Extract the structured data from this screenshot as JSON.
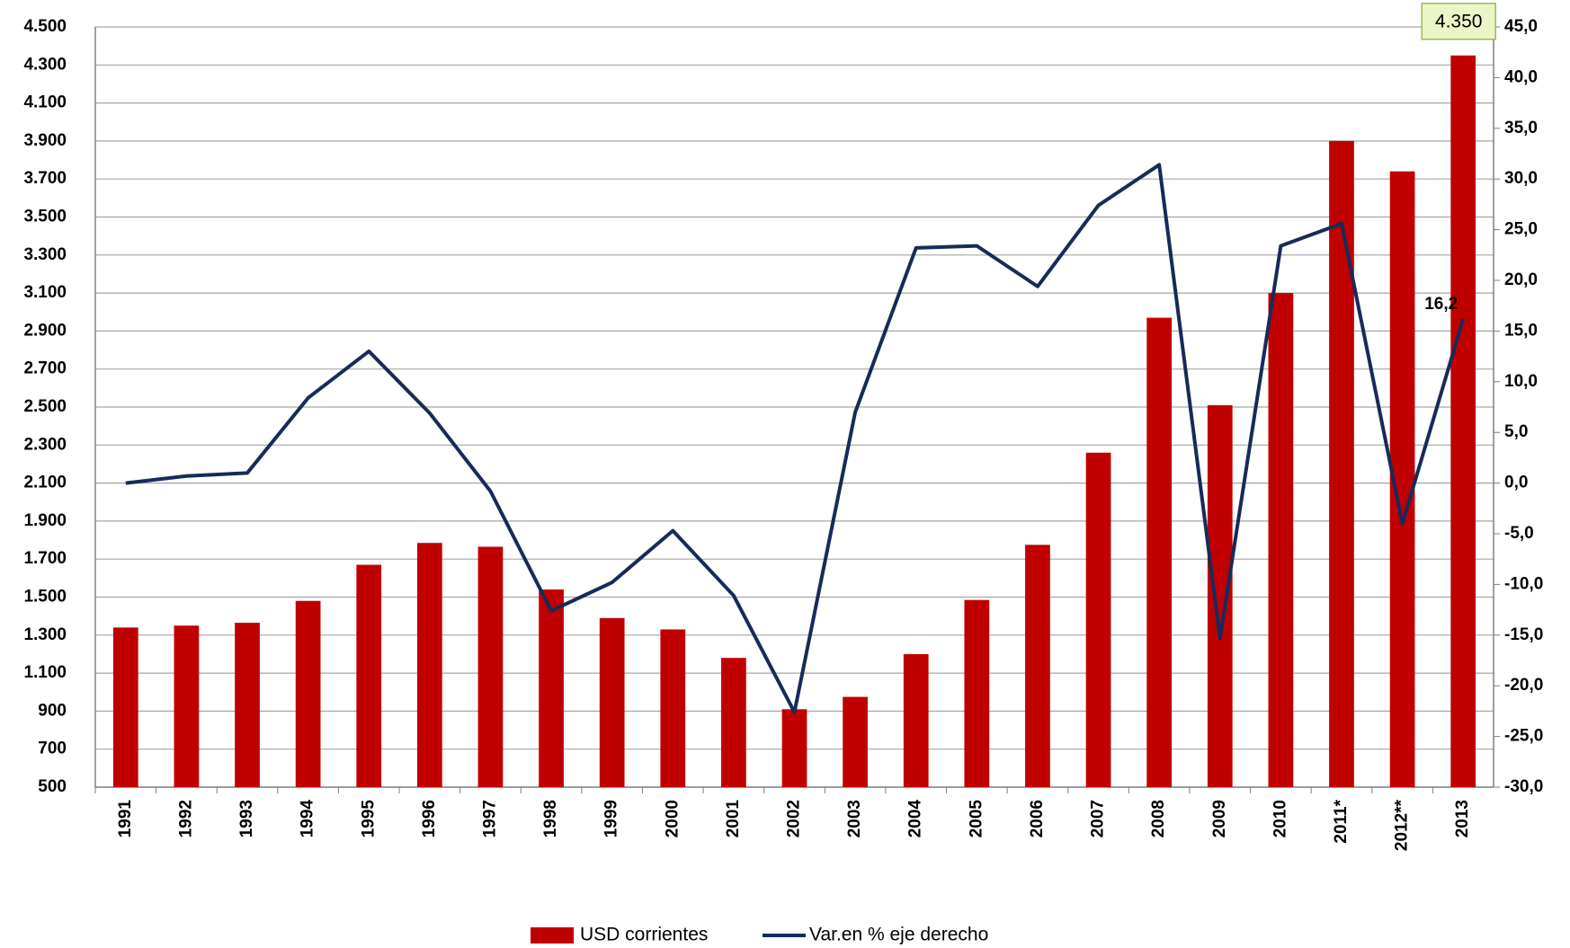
{
  "chart_data": {
    "type": "bar",
    "categories": [
      "1991",
      "1992",
      "1993",
      "1994",
      "1995",
      "1996",
      "1997",
      "1998",
      "1999",
      "2000",
      "2001",
      "2002",
      "2003",
      "2004",
      "2005",
      "2006",
      "2007",
      "2008",
      "2009",
      "2010",
      "2011*",
      "2012**",
      "2013"
    ],
    "series": [
      {
        "name": "USD corrientes",
        "type": "bar",
        "color": "#c00000",
        "axis": "y",
        "values": [
          1340,
          1350,
          1365,
          1480,
          1670,
          1785,
          1765,
          1540,
          1390,
          1330,
          1180,
          910,
          975,
          1200,
          1485,
          1775,
          2260,
          2970,
          2510,
          3100,
          3900,
          3740,
          4350
        ],
        "value_labels": [
          null,
          null,
          null,
          null,
          null,
          null,
          null,
          null,
          null,
          null,
          null,
          null,
          null,
          null,
          null,
          null,
          null,
          null,
          null,
          null,
          null,
          null,
          "4.350"
        ]
      },
      {
        "name": "Var.en % eje derecho",
        "type": "line",
        "color": "#172b5a",
        "axis": "y2",
        "values": [
          0.0,
          0.7,
          1.0,
          8.4,
          13.0,
          6.9,
          -0.8,
          -12.6,
          -9.8,
          -4.7,
          -11.1,
          -22.6,
          7.0,
          23.2,
          23.4,
          19.4,
          27.4,
          31.4,
          -15.3,
          23.4,
          25.6,
          -4.0,
          16.2
        ],
        "value_labels": [
          null,
          null,
          null,
          null,
          null,
          null,
          null,
          null,
          null,
          null,
          null,
          null,
          null,
          null,
          null,
          null,
          null,
          null,
          null,
          null,
          null,
          null,
          "16,2"
        ]
      }
    ],
    "ylim": [
      500,
      4500
    ],
    "yticks": [
      500,
      700,
      900,
      {
        "value": 1100,
        "label": "1.100"
      },
      {
        "value": 1300,
        "label": "1.300"
      },
      {
        "value": 1500,
        "label": "1.500"
      },
      {
        "value": 1700,
        "label": "1.700"
      },
      {
        "value": 1900,
        "label": "1.900"
      },
      {
        "value": 2100,
        "label": "2.100"
      },
      {
        "value": 2300,
        "label": "2.300"
      },
      {
        "value": 2500,
        "label": "2.500"
      },
      {
        "value": 2700,
        "label": "2.700"
      },
      {
        "value": 2900,
        "label": "2.900"
      },
      {
        "value": 3100,
        "label": "3.100"
      },
      {
        "value": 3300,
        "label": "3.300"
      },
      {
        "value": 3500,
        "label": "3.500"
      },
      {
        "value": 3700,
        "label": "3.700"
      },
      {
        "value": 3900,
        "label": "3.900"
      },
      {
        "value": 4100,
        "label": "4.100"
      },
      {
        "value": 4300,
        "label": "4.300"
      },
      {
        "value": 4500,
        "label": "4.500"
      }
    ],
    "y2lim": [
      -30,
      45
    ],
    "y2ticks": [
      {
        "value": -30,
        "label": "-30,0"
      },
      {
        "value": -25,
        "label": "-25,0"
      },
      {
        "value": -20,
        "label": "-20,0"
      },
      {
        "value": -15,
        "label": "-15,0"
      },
      {
        "value": -10,
        "label": "-10,0"
      },
      {
        "value": -5,
        "label": "-5,0"
      },
      {
        "value": 0,
        "label": "0,0"
      },
      {
        "value": 5,
        "label": "5,0"
      },
      {
        "value": 10,
        "label": "10,0"
      },
      {
        "value": 15,
        "label": "15,0"
      },
      {
        "value": 20,
        "label": "20,0"
      },
      {
        "value": 25,
        "label": "25,0"
      },
      {
        "value": 30,
        "label": "30,0"
      },
      {
        "value": 35,
        "label": "35,0"
      },
      {
        "value": 40,
        "label": "40,0"
      },
      {
        "value": 45,
        "label": "45,0"
      }
    ],
    "grid": true,
    "legend": "bottom"
  }
}
